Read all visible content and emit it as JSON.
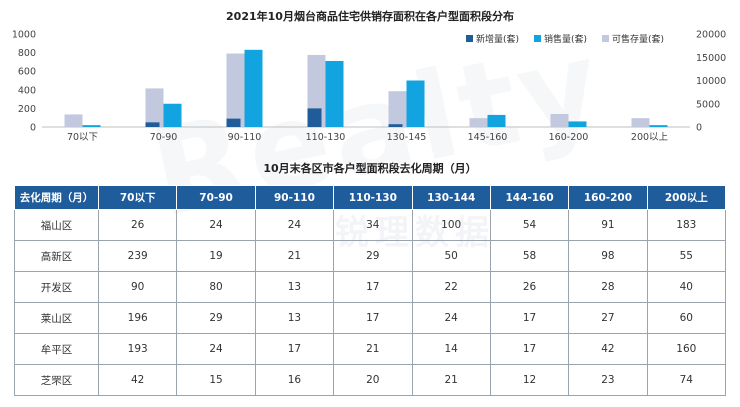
{
  "chart_data": {
    "type": "bar",
    "title": "2021年10月烟台商品住宅供销存面积在各户型面积段分布",
    "categories": [
      "70以下",
      "70-90",
      "90-110",
      "110-130",
      "130-145",
      "145-160",
      "160-200",
      "200以上"
    ],
    "series": [
      {
        "name": "新增量(套)",
        "axis": "left",
        "color": "#1f5c99",
        "values": [
          0,
          50,
          90,
          200,
          30,
          0,
          0,
          0
        ]
      },
      {
        "name": "销售量(套)",
        "axis": "left",
        "color": "#12a4e0",
        "values": [
          20,
          250,
          830,
          710,
          500,
          130,
          60,
          20
        ]
      },
      {
        "name": "可售存量(套)",
        "axis": "right",
        "color": "#c2c9de",
        "values": [
          2700,
          8300,
          15800,
          15500,
          7700,
          1900,
          2800,
          1900
        ]
      }
    ],
    "y_left": {
      "ylim": [
        0,
        1000
      ],
      "ticks": [
        "0",
        "200",
        "400",
        "600",
        "800",
        "1000"
      ]
    },
    "y_right": {
      "ylim": [
        0,
        20000
      ],
      "ticks": [
        "0",
        "5000",
        "10000",
        "15000",
        "20000"
      ]
    },
    "legend_position": "top-right",
    "grid": false
  },
  "table": {
    "title": "10月末各区市各户型面积段去化周期（月）",
    "headers": [
      "去化周期（月）",
      "70以下",
      "70-90",
      "90-110",
      "110-130",
      "130-144",
      "144-160",
      "160-200",
      "200以上"
    ],
    "rows": [
      [
        "福山区",
        "26",
        "24",
        "24",
        "34",
        "100",
        "54",
        "91",
        "183"
      ],
      [
        "高新区",
        "239",
        "19",
        "21",
        "29",
        "50",
        "58",
        "98",
        "55"
      ],
      [
        "开发区",
        "90",
        "80",
        "13",
        "17",
        "22",
        "26",
        "28",
        "40"
      ],
      [
        "莱山区",
        "196",
        "29",
        "13",
        "17",
        "24",
        "17",
        "27",
        "60"
      ],
      [
        "牟平区",
        "193",
        "24",
        "17",
        "21",
        "14",
        "17",
        "42",
        "160"
      ],
      [
        "芝罘区",
        "42",
        "15",
        "16",
        "20",
        "21",
        "12",
        "23",
        "74"
      ]
    ]
  }
}
